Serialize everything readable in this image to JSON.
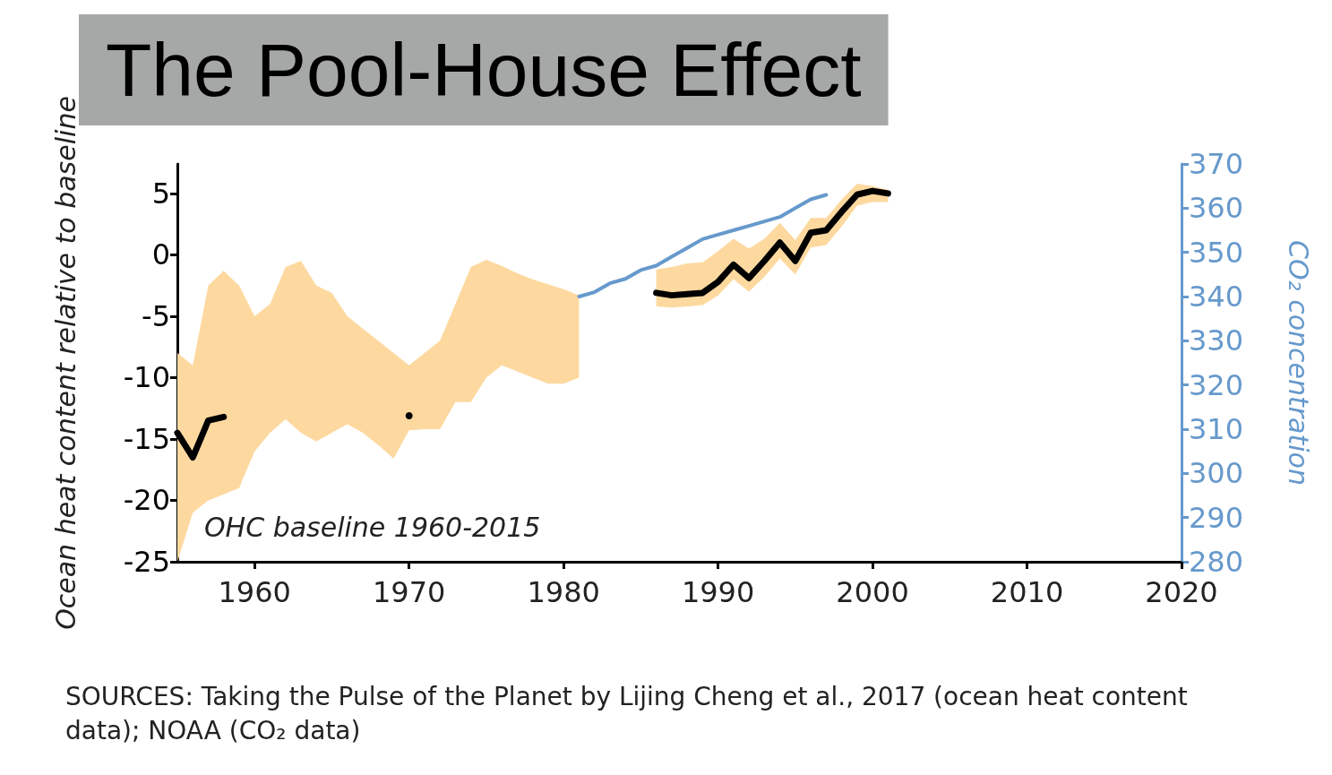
{
  "chart_data": {
    "type": "line",
    "title": "The Pool-House Effect",
    "ylabel": "Ocean heat content relative to baseline",
    "y2label": "CO₂ concentration",
    "xlim": [
      1955,
      2020
    ],
    "xticks": [
      1960,
      1970,
      1980,
      1990,
      2000,
      2010,
      2020
    ],
    "ylim": [
      -25,
      7.4
    ],
    "yticks": [
      -25,
      -20,
      -15,
      -10,
      -5,
      0,
      5
    ],
    "y2lim": [
      280,
      370
    ],
    "y2ticks": [
      280,
      290,
      300,
      310,
      320,
      330,
      340,
      350,
      360,
      370
    ],
    "grid": false,
    "annotations": [
      "OHC baseline 1960-2015",
      "SOURCES: Taking the Pulse of the Planet by Lijing Cheng et al., 2017 (ocean heat content data); NOAA (CO₂ data)"
    ],
    "series": [
      {
        "color": "#000000",
        "x": [
          1955,
          1956,
          1957,
          1958,
          1959,
          1960,
          1961,
          1962,
          1963,
          1964,
          1965,
          1966,
          1967,
          1968,
          1969,
          1970,
          1971,
          1972,
          1973,
          1974,
          1975,
          1976,
          1977,
          1978,
          1979,
          1980,
          1981,
          1982,
          1983,
          1984,
          1985,
          1986,
          1987,
          1988,
          1989,
          1990,
          1991,
          1992,
          1993,
          1994,
          1995,
          1996,
          1997,
          1998,
          1999,
          2000,
          2001
        ],
        "values": [
          -14.5,
          -16.5,
          -13.5,
          -13.2,
          null,
          null,
          null,
          null,
          null,
          null,
          null,
          null,
          null,
          null,
          null,
          -13.1,
          null,
          null,
          null,
          null,
          null,
          null,
          null,
          null,
          null,
          null,
          null,
          null,
          null,
          null,
          null,
          -3.1,
          -3.3,
          -3.2,
          -3.1,
          -2.2,
          -0.8,
          -1.9,
          -0.5,
          1,
          -0.5,
          1.8,
          2,
          3.5,
          4.9,
          5.2,
          5
        ],
        "lower": [
          -25,
          -21,
          -20,
          -19.5,
          -19,
          -16,
          -14.5,
          -13.4,
          -14.5,
          -15.2,
          -14.5,
          -13.8,
          -14.5,
          -15.5,
          -16.6,
          -14.3,
          -14.2,
          -14.2,
          -12,
          -12,
          -10,
          -9,
          -9.5,
          -10,
          -10.5,
          -10.5,
          -10,
          null,
          null,
          null,
          null,
          -4.2,
          -4.3,
          -4.2,
          -4.1,
          -3.3,
          -2,
          -3,
          -1.8,
          -0.3,
          -1.6,
          0.6,
          0.8,
          2.3,
          4,
          4.3,
          4.3
        ],
        "upper": [
          -8,
          -9,
          -2.5,
          -1.3,
          -2.5,
          -5,
          -4,
          -1,
          -0.5,
          -2.5,
          -3.1,
          -5,
          -6,
          -7,
          -8,
          -9,
          -8,
          -7,
          -4,
          -1,
          -0.4,
          -0.9,
          -1.5,
          -2,
          -2.4,
          -2.8,
          -3.3,
          null,
          null,
          null,
          null,
          -1.2,
          -1,
          -0.7,
          -0.6,
          0.3,
          1.3,
          0.5,
          1.3,
          2.6,
          1.2,
          3,
          3,
          4.5,
          5.8,
          5.6,
          5.3
        ]
      },
      {
        "color": "#6699cc",
        "axis": "y2",
        "x": [
          1981,
          1982,
          1983,
          1984,
          1985,
          1986,
          1987,
          1988,
          1989,
          1990,
          1991,
          1992,
          1993,
          1994,
          1995,
          1996,
          1997
        ],
        "values": [
          340,
          341,
          343,
          344,
          346,
          347,
          349,
          351,
          353,
          354,
          355,
          356,
          357,
          358,
          360,
          362,
          363
        ]
      }
    ]
  }
}
